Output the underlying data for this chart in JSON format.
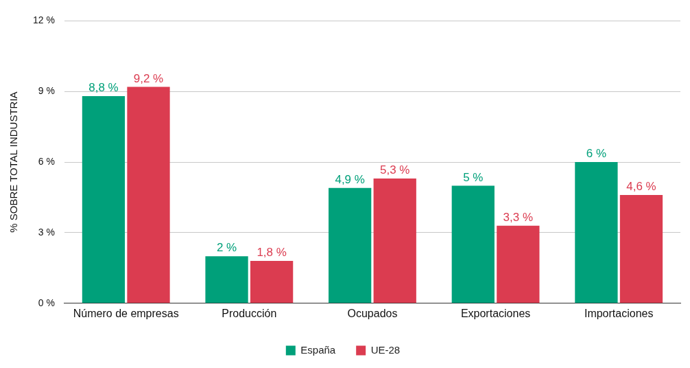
{
  "chart_data": {
    "type": "bar",
    "ylabel": "% SOBRE TOTAL INDUSTRIA",
    "categories": [
      "Número de empresas",
      "Producción",
      "Ocupados",
      "Exportaciones",
      "Importaciones"
    ],
    "series": [
      {
        "name": "España",
        "color": "#00a07a",
        "values": [
          8.8,
          2,
          4.9,
          5,
          6
        ],
        "value_labels": [
          "8,8 %",
          "2 %",
          "4,9 %",
          "5 %",
          "6 %"
        ]
      },
      {
        "name": "UE-28",
        "color": "#db3c50",
        "values": [
          9.2,
          1.8,
          5.3,
          3.3,
          4.6
        ],
        "value_labels": [
          "9,2 %",
          "1,8 %",
          "5,3 %",
          "3,3 %",
          "4,6 %"
        ]
      }
    ],
    "ylim": [
      0,
      12
    ],
    "yticks": [
      {
        "value": 0,
        "label": "0 %"
      },
      {
        "value": 3,
        "label": "3 %"
      },
      {
        "value": 6,
        "label": "6 %"
      },
      {
        "value": 9,
        "label": "9 %"
      },
      {
        "value": 12,
        "label": "12 %"
      }
    ],
    "grid": "y",
    "legend": "bottom"
  }
}
